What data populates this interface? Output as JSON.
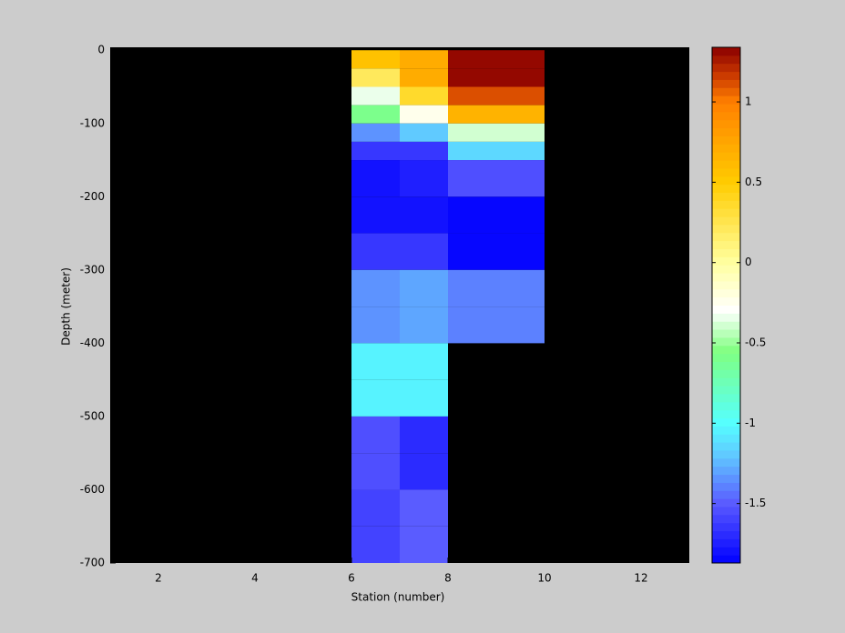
{
  "chart_data": {
    "type": "heatmap",
    "xlabel": "Station (number)",
    "ylabel": "Depth (meter)",
    "x_edges": [
      6,
      7,
      8,
      10
    ],
    "y_edges": [
      0,
      -25,
      -50,
      -75,
      -100,
      -125,
      -150,
      -200,
      -250,
      -300,
      -350,
      -400,
      -450,
      -500,
      -550,
      -600,
      -650,
      -700
    ],
    "values": [
      [
        0.55,
        0.7,
        1.3
      ],
      [
        0.2,
        0.72,
        1.3
      ],
      [
        -0.35,
        0.35,
        1.1
      ],
      [
        -0.6,
        -0.25,
        0.65
      ],
      [
        -1.35,
        -1.2,
        -0.4
      ],
      [
        -1.65,
        -1.65,
        -1.15
      ],
      [
        -1.8,
        -1.75,
        -1.55
      ],
      [
        -1.8,
        -1.8,
        -1.85
      ],
      [
        -1.65,
        -1.65,
        -1.85
      ],
      [
        -1.35,
        -1.3,
        -1.4
      ],
      [
        -1.35,
        -1.3,
        -1.4
      ],
      [
        -1.05,
        -1.05,
        null
      ],
      [
        -1.05,
        -1.05,
        null
      ],
      [
        -1.55,
        -1.7,
        null
      ],
      [
        -1.55,
        -1.7,
        null
      ],
      [
        -1.6,
        -1.5,
        null
      ],
      [
        -1.6,
        -1.5,
        null
      ]
    ],
    "xlim": [
      1,
      13
    ],
    "ylim": [
      -700,
      4
    ],
    "xticks": [
      2,
      4,
      6,
      8,
      10,
      12
    ],
    "yticks": [
      0,
      -100,
      -200,
      -300,
      -400,
      -500,
      -600,
      -700
    ],
    "clim": [
      -1.87,
      1.34
    ],
    "cticks": [
      -1.5,
      -1,
      -0.5,
      0,
      0.5,
      1
    ],
    "colormap_steps": 64,
    "colormap": [
      {
        "value": -1.87,
        "color": "#0000ff"
      },
      {
        "value": -1.5,
        "color": "#5a5aff"
      },
      {
        "value": -1.2,
        "color": "#60c8ff"
      },
      {
        "value": -1.0,
        "color": "#55ffff"
      },
      {
        "value": -0.55,
        "color": "#80ff80"
      },
      {
        "value": -0.3,
        "color": "#ffffff"
      },
      {
        "value": 0,
        "color": "#ffffa0"
      },
      {
        "value": 0.5,
        "color": "#ffcc00"
      },
      {
        "value": 1.0,
        "color": "#ff8000"
      },
      {
        "value": 1.15,
        "color": "#d04000"
      },
      {
        "value": 1.34,
        "color": "#8b0000"
      }
    ],
    "nan_color": "#000000"
  }
}
